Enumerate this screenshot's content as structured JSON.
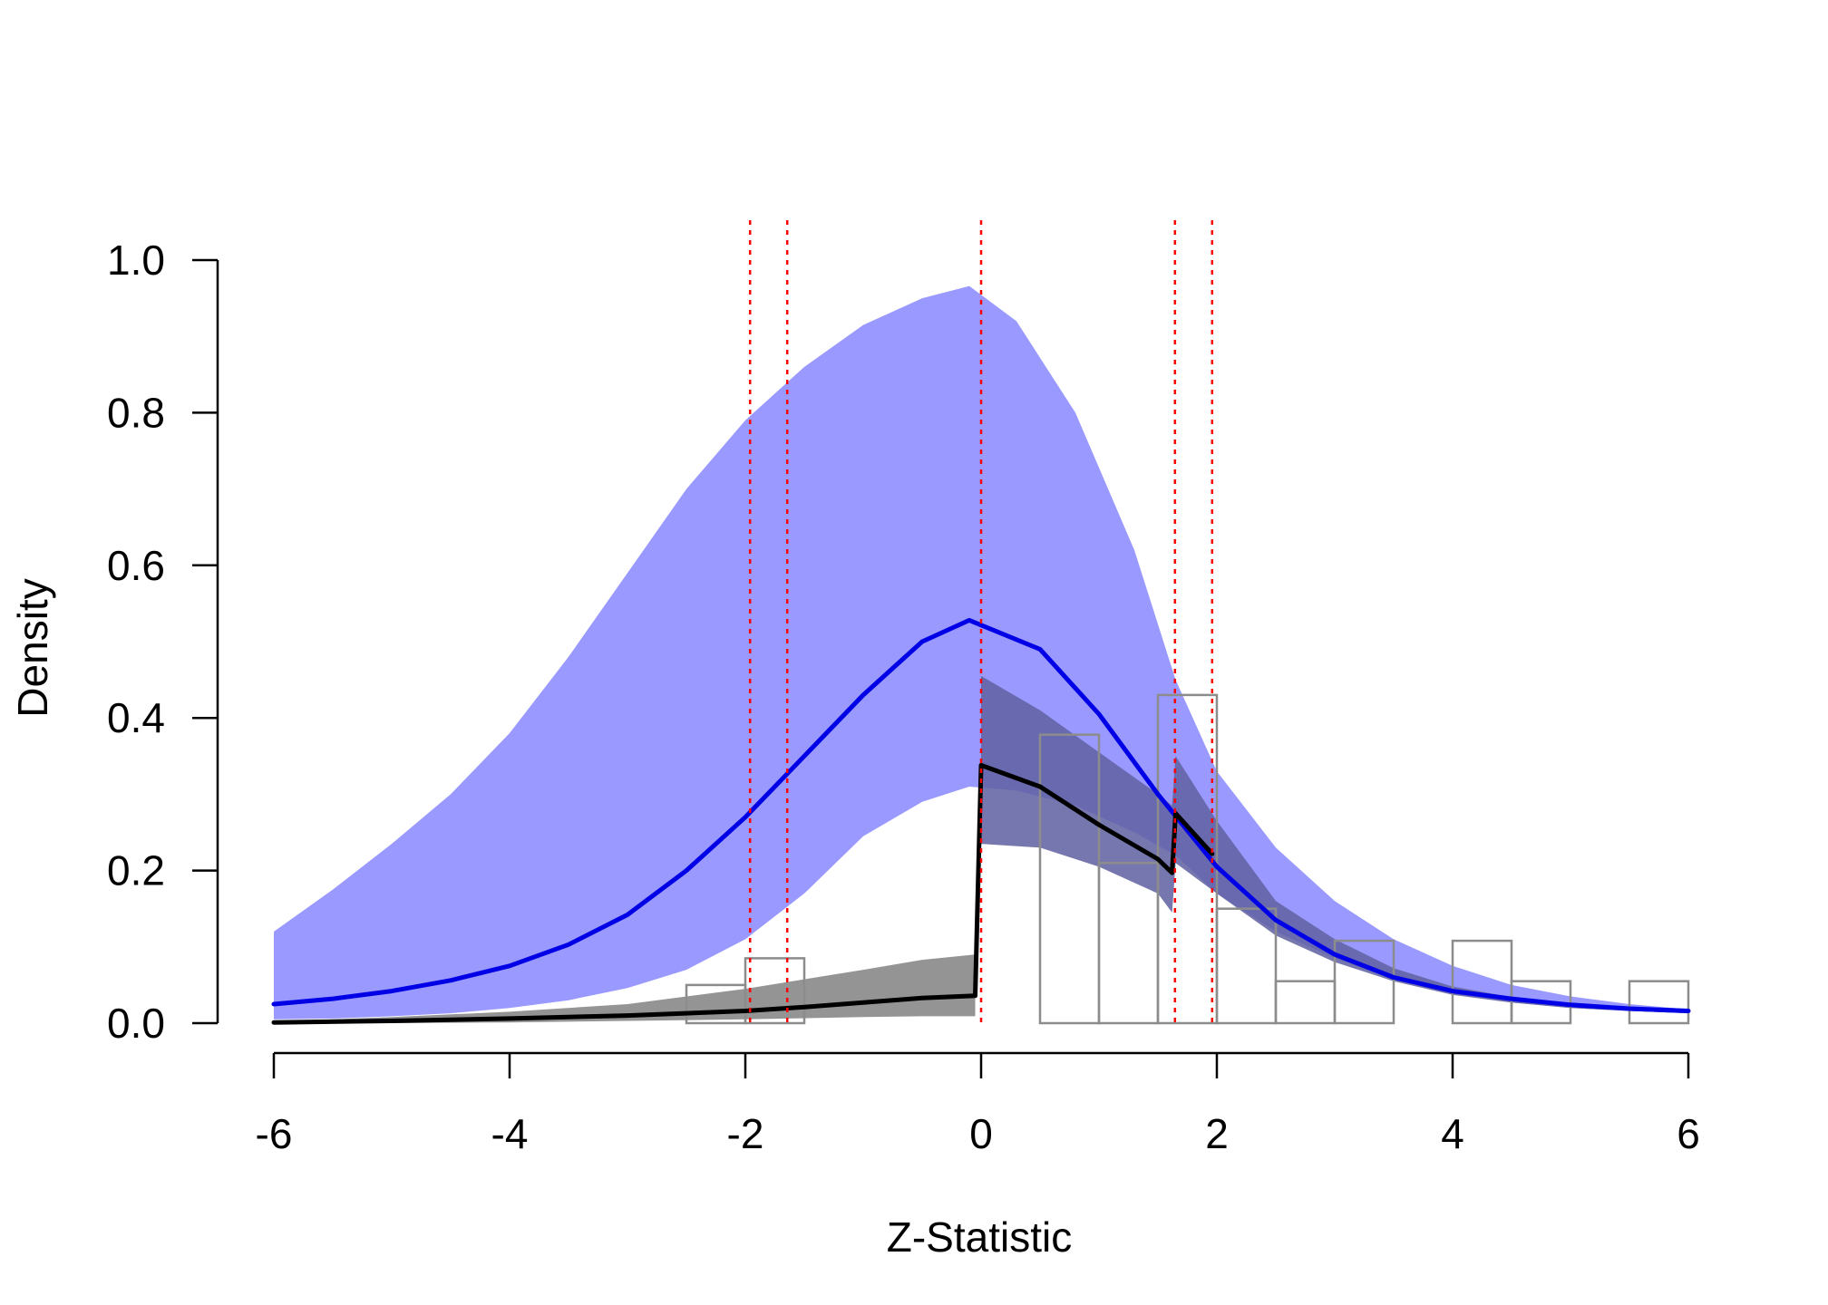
{
  "chart_data": {
    "type": "line",
    "title": "",
    "xlabel": "Z-Statistic",
    "ylabel": "Density",
    "xlim": [
      -6,
      6
    ],
    "ylim": [
      0,
      1
    ],
    "x_ticks": [
      -6,
      -4,
      -2,
      0,
      2,
      4,
      6
    ],
    "x_tick_labels": [
      "-6",
      "-4",
      "-2",
      "0",
      "2",
      "4",
      "6"
    ],
    "y_ticks": [
      0,
      0.2,
      0.4,
      0.6,
      0.8,
      1.0
    ],
    "y_tick_labels": [
      "0.0",
      "0.2",
      "0.4",
      "0.6",
      "0.8",
      "1.0"
    ],
    "grid": false,
    "legend": "none",
    "reference_lines_x": [
      -1.96,
      -1.645,
      0,
      1.645,
      1.96
    ],
    "histogram": {
      "bin_width": 0.5,
      "bins": [
        {
          "x0": -2.5,
          "density": 0.05
        },
        {
          "x0": -2.0,
          "density": 0.085
        },
        {
          "x0": 0.5,
          "density": 0.378
        },
        {
          "x0": 1.0,
          "density": 0.21
        },
        {
          "x0": 1.5,
          "density": 0.43
        },
        {
          "x0": 2.0,
          "density": 0.15
        },
        {
          "x0": 2.5,
          "density": 0.055
        },
        {
          "x0": 3.0,
          "density": 0.108
        },
        {
          "x0": 4.0,
          "density": 0.108
        },
        {
          "x0": 4.5,
          "density": 0.055
        },
        {
          "x0": 5.5,
          "density": 0.055
        }
      ]
    },
    "series": [
      {
        "role": "density-blue",
        "x": [
          -6,
          -5.5,
          -5,
          -4.5,
          -4,
          -3.5,
          -3,
          -2.5,
          -2,
          -1.5,
          -1,
          -0.5,
          -0.1,
          0.5,
          1,
          1.5,
          2,
          2.5,
          3,
          3.5,
          4,
          4.5,
          5,
          5.5,
          6
        ],
        "y": [
          0.025,
          0.032,
          0.042,
          0.056,
          0.075,
          0.103,
          0.142,
          0.2,
          0.27,
          0.35,
          0.43,
          0.5,
          0.528,
          0.49,
          0.405,
          0.3,
          0.205,
          0.135,
          0.09,
          0.06,
          0.042,
          0.032,
          0.024,
          0.019,
          0.016
        ]
      },
      {
        "role": "density-black",
        "x": [
          -6,
          -5,
          -4,
          -3,
          -2,
          -1.5,
          -1,
          -0.5,
          -0.05,
          -0.05,
          0,
          0.5,
          1,
          1.5,
          1.62,
          1.65,
          1.96
        ],
        "y": [
          0.001,
          0.003,
          0.006,
          0.01,
          0.016,
          0.021,
          0.027,
          0.033,
          0.036,
          0.036,
          0.338,
          0.31,
          0.26,
          0.215,
          0.197,
          0.275,
          0.222
        ]
      }
    ],
    "bands": [
      {
        "role": "ci-blue",
        "x": [
          -6,
          -5.5,
          -5,
          -4.5,
          -4,
          -3.5,
          -3,
          -2.5,
          -2,
          -1.5,
          -1,
          -0.5,
          -0.1,
          0.3,
          0.8,
          1.3,
          1.65,
          2,
          2.5,
          3,
          3.5,
          4,
          4.5,
          5,
          5.5,
          6
        ],
        "lower": [
          0.005,
          0.006,
          0.009,
          0.013,
          0.02,
          0.03,
          0.046,
          0.07,
          0.11,
          0.17,
          0.245,
          0.29,
          0.31,
          0.305,
          0.285,
          0.25,
          0.22,
          0.17,
          0.12,
          0.085,
          0.057,
          0.038,
          0.027,
          0.02,
          0.016,
          0.013
        ],
        "upper": [
          0.12,
          0.175,
          0.235,
          0.3,
          0.38,
          0.48,
          0.59,
          0.7,
          0.79,
          0.86,
          0.915,
          0.95,
          0.966,
          0.92,
          0.8,
          0.62,
          0.45,
          0.33,
          0.23,
          0.16,
          0.11,
          0.075,
          0.05,
          0.035,
          0.025,
          0.018
        ]
      },
      {
        "role": "ci-black-left",
        "x": [
          -6,
          -5,
          -4,
          -3,
          -2,
          -1,
          -0.5,
          -0.05
        ],
        "lower": [
          0,
          0,
          0.001,
          0.003,
          0.005,
          0.008,
          0.009,
          0.009
        ],
        "upper": [
          0.002,
          0.008,
          0.015,
          0.025,
          0.045,
          0.07,
          0.083,
          0.09
        ]
      },
      {
        "role": "ci-black-right",
        "x": [
          0,
          0.5,
          1,
          1.5,
          1.62,
          1.65,
          2,
          2.5,
          3,
          3.5,
          4,
          4.5,
          5,
          5.5,
          6
        ],
        "lower": [
          0.235,
          0.23,
          0.205,
          0.17,
          0.145,
          0.21,
          0.17,
          0.115,
          0.08,
          0.055,
          0.037,
          0.027,
          0.02,
          0.016,
          0.013
        ],
        "upper": [
          0.455,
          0.41,
          0.355,
          0.3,
          0.285,
          0.35,
          0.265,
          0.16,
          0.11,
          0.072,
          0.048,
          0.034,
          0.025,
          0.02,
          0.016
        ]
      }
    ],
    "colors": {
      "blue_band": "#9999ff",
      "blue_line": "#0000e6",
      "black_band": "#6b6b6b",
      "black_line": "#000000",
      "ref_line": "#ff0000",
      "hist_edge": "#8c8c8c",
      "dark_overlap": "#5c5cc4"
    }
  }
}
